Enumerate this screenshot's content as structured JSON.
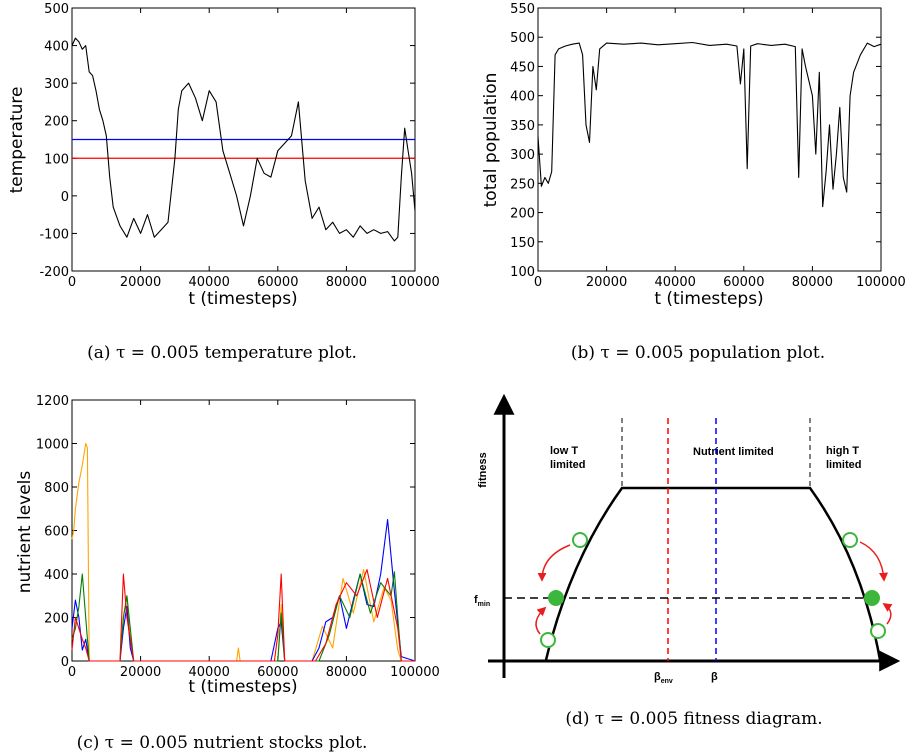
{
  "chart_data": [
    {
      "type": "line",
      "panel": "a",
      "xlabel": "t (timesteps)",
      "ylabel": "temperature",
      "xlim": [
        0,
        100000
      ],
      "ylim": [
        -200,
        500
      ],
      "xticks": [
        0,
        20000,
        40000,
        60000,
        80000,
        100000
      ],
      "yticks": [
        -200,
        -100,
        0,
        100,
        200,
        300,
        400,
        500
      ],
      "caption": "(a) τ = 0.005 temperature plot.",
      "hlines": [
        {
          "y": 150,
          "color": "#0000ff"
        },
        {
          "y": 100,
          "color": "#ff0000"
        }
      ],
      "series": [
        {
          "color": "#000000",
          "x": [
            0,
            1000,
            2000,
            3000,
            4000,
            5000,
            6000,
            7000,
            8000,
            9000,
            10000,
            11000,
            12000,
            14000,
            16000,
            18000,
            20000,
            22000,
            24000,
            26000,
            28000,
            30000,
            31000,
            32000,
            34000,
            36000,
            38000,
            40000,
            42000,
            44000,
            46000,
            48000,
            50000,
            52000,
            54000,
            56000,
            58000,
            60000,
            62000,
            64000,
            66000,
            68000,
            70000,
            72000,
            74000,
            76000,
            78000,
            80000,
            82000,
            84000,
            86000,
            88000,
            90000,
            92000,
            94000,
            95000,
            96000,
            97000,
            98000,
            99000,
            100000
          ],
          "y": [
            400,
            420,
            410,
            390,
            400,
            330,
            320,
            280,
            230,
            200,
            160,
            50,
            -30,
            -80,
            -110,
            -60,
            -100,
            -50,
            -110,
            -90,
            -70,
            100,
            230,
            280,
            300,
            260,
            200,
            280,
            250,
            120,
            60,
            0,
            -80,
            0,
            100,
            60,
            50,
            120,
            140,
            160,
            250,
            40,
            -60,
            -30,
            -90,
            -70,
            -100,
            -90,
            -110,
            -80,
            -100,
            -90,
            -100,
            -95,
            -120,
            -110,
            50,
            180,
            120,
            60,
            -40
          ]
        }
      ]
    },
    {
      "type": "line",
      "panel": "b",
      "xlabel": "t (timesteps)",
      "ylabel": "total population",
      "xlim": [
        0,
        100000
      ],
      "ylim": [
        100,
        550
      ],
      "xticks": [
        0,
        20000,
        40000,
        60000,
        80000,
        100000
      ],
      "yticks": [
        100,
        150,
        200,
        250,
        300,
        350,
        400,
        450,
        500,
        550
      ],
      "caption": "(b) τ = 0.005 population plot.",
      "series": [
        {
          "color": "#000000",
          "x": [
            0,
            1000,
            2000,
            3000,
            4000,
            5000,
            6000,
            8000,
            10000,
            12000,
            13000,
            14000,
            15000,
            16000,
            17000,
            18000,
            20000,
            25000,
            30000,
            35000,
            40000,
            45000,
            50000,
            55000,
            58000,
            59000,
            60000,
            61000,
            62000,
            64000,
            68000,
            72000,
            75000,
            76000,
            77000,
            78000,
            80000,
            81000,
            82000,
            83000,
            84000,
            85000,
            86000,
            87000,
            88000,
            89000,
            90000,
            91000,
            92000,
            94000,
            96000,
            98000,
            100000
          ],
          "y": [
            330,
            245,
            260,
            250,
            270,
            470,
            480,
            485,
            488,
            490,
            470,
            350,
            320,
            450,
            410,
            480,
            490,
            488,
            490,
            487,
            489,
            491,
            486,
            488,
            485,
            420,
            480,
            275,
            485,
            489,
            486,
            488,
            484,
            260,
            480,
            450,
            400,
            300,
            440,
            210,
            270,
            350,
            240,
            300,
            380,
            260,
            235,
            400,
            440,
            470,
            490,
            484,
            488
          ]
        }
      ]
    },
    {
      "type": "line",
      "panel": "c",
      "xlabel": "t (timesteps)",
      "ylabel": "nutrient levels",
      "xlim": [
        0,
        100000
      ],
      "ylim": [
        0,
        1200
      ],
      "xticks": [
        0,
        20000,
        40000,
        60000,
        80000,
        100000
      ],
      "yticks": [
        0,
        200,
        400,
        600,
        800,
        1000,
        1200
      ],
      "caption": "(c) τ = 0.005 nutrient stocks plot.",
      "series": [
        {
          "color": "#ffa500",
          "x": [
            0,
            500,
            1000,
            2000,
            3000,
            4000,
            4500,
            5000,
            6000,
            14000,
            15000,
            16000,
            17000,
            18000,
            20000,
            48000,
            48500,
            49000,
            60000,
            61000,
            62000,
            70000,
            73000,
            76000,
            79000,
            82000,
            85000,
            88000,
            91000,
            93000,
            95000,
            96000,
            100000
          ],
          "y": [
            560,
            600,
            700,
            820,
            900,
            1000,
            980,
            0,
            0,
            0,
            200,
            300,
            100,
            0,
            0,
            0,
            60,
            0,
            0,
            260,
            0,
            0,
            160,
            60,
            380,
            220,
            420,
            180,
            340,
            280,
            50,
            0,
            0
          ]
        },
        {
          "color": "#0000ff",
          "x": [
            0,
            1000,
            2000,
            3000,
            4000,
            5000,
            14000,
            15000,
            16000,
            17000,
            18000,
            58000,
            60000,
            61000,
            62000,
            70000,
            72000,
            74000,
            76000,
            78000,
            80000,
            82000,
            84000,
            86000,
            88000,
            90000,
            92000,
            94000,
            96000,
            100000
          ],
          "y": [
            150,
            280,
            200,
            50,
            100,
            0,
            0,
            150,
            250,
            60,
            0,
            0,
            150,
            180,
            0,
            0,
            60,
            180,
            200,
            300,
            150,
            280,
            400,
            260,
            250,
            400,
            650,
            320,
            20,
            0
          ]
        },
        {
          "color": "#008000",
          "x": [
            0,
            1000,
            2000,
            3000,
            4000,
            5000,
            14000,
            15000,
            16000,
            18000,
            60000,
            61000,
            62000,
            72000,
            75000,
            78000,
            81000,
            84000,
            87000,
            90000,
            93000,
            94000,
            95000,
            96000,
            100000
          ],
          "y": [
            100,
            150,
            250,
            400,
            200,
            0,
            0,
            200,
            300,
            0,
            0,
            220,
            0,
            0,
            120,
            300,
            200,
            400,
            220,
            360,
            300,
            410,
            200,
            0,
            0
          ]
        },
        {
          "color": "#ff0000",
          "x": [
            0,
            1000,
            2000,
            3000,
            4000,
            5000,
            14000,
            15000,
            16000,
            17000,
            18000,
            59000,
            60000,
            61000,
            62000,
            71000,
            74000,
            77000,
            80000,
            83000,
            86000,
            89000,
            92000,
            95000,
            96000,
            100000
          ],
          "y": [
            50,
            200,
            150,
            100,
            60,
            0,
            0,
            400,
            200,
            100,
            0,
            0,
            120,
            400,
            0,
            0,
            80,
            260,
            360,
            300,
            420,
            200,
            380,
            150,
            0,
            0
          ]
        }
      ]
    },
    {
      "type": "diagram",
      "panel": "d",
      "ylabel": "fitness",
      "caption": "(d) τ = 0.005 fitness diagram.",
      "regions": [
        "low T\nlimited",
        "Nutrient limited",
        "high T\nlimited"
      ],
      "fmin_label": "f",
      "fmin_sub": "min",
      "beta_env_label": "β",
      "beta_env_sub": "env",
      "beta_label": "β",
      "colors": {
        "curve": "#000000",
        "beta_env": "#ff0000",
        "beta": "#0000ff",
        "dot": "#3cb73c",
        "arrow": "#e81e1e"
      }
    }
  ]
}
